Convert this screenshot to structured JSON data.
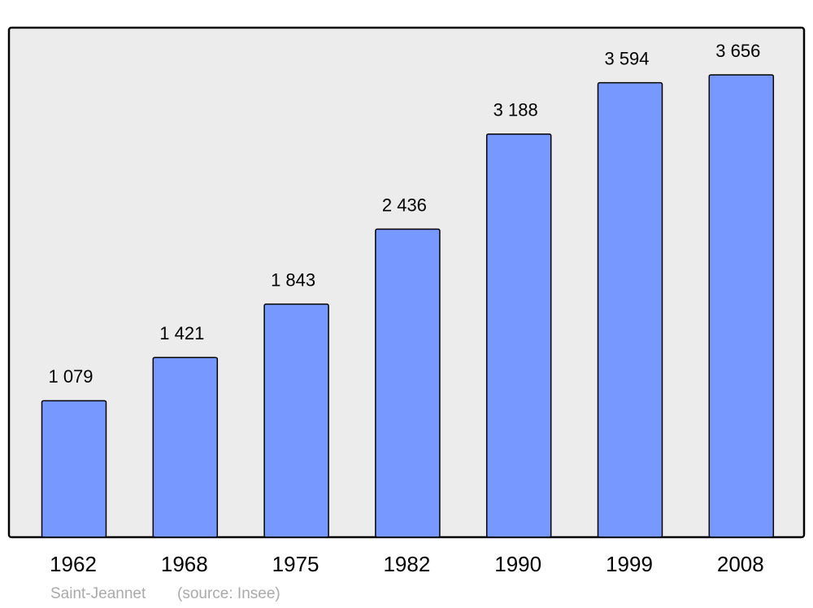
{
  "chart_data": {
    "type": "bar",
    "categories": [
      "1962",
      "1968",
      "1975",
      "1982",
      "1990",
      "1999",
      "2008"
    ],
    "values": [
      1079,
      1421,
      1843,
      2436,
      3188,
      3594,
      3656
    ],
    "value_labels": [
      "1 079",
      "1 421",
      "1 843",
      "2 436",
      "3 188",
      "3 594",
      "3 656"
    ],
    "color": "#7799ff",
    "place": "Saint-Jeannet",
    "source": "(source: Insee)"
  }
}
